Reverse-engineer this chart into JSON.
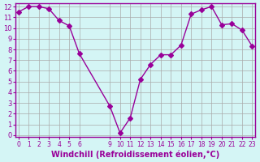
{
  "x": [
    0,
    1,
    2,
    3,
    4,
    5,
    6,
    9,
    10,
    11,
    12,
    13,
    14,
    15,
    16,
    17,
    18,
    19,
    20,
    21,
    22,
    23
  ],
  "y": [
    11.5,
    12.0,
    12.0,
    11.8,
    10.7,
    10.2,
    7.6,
    2.7,
    0.2,
    1.6,
    5.2,
    6.6,
    7.5,
    7.5,
    8.4,
    11.3,
    11.7,
    12.0,
    10.3,
    10.4,
    9.8,
    8.3
  ],
  "ylim": [
    0,
    12
  ],
  "xlim": [
    -0.3,
    23.3
  ],
  "yticks": [
    0,
    1,
    2,
    3,
    4,
    5,
    6,
    7,
    8,
    9,
    10,
    11,
    12
  ],
  "shown_xticks": [
    0,
    1,
    2,
    3,
    4,
    5,
    6,
    9,
    10,
    11,
    12,
    13,
    14,
    15,
    16,
    17,
    18,
    19,
    20,
    21,
    22,
    23
  ],
  "line_color": "#990099",
  "marker": "D",
  "marker_size": 3,
  "bg_color": "#d4f5f5",
  "grid_color": "#aaaaaa",
  "xlabel": "Windchill (Refroidissement éolien,°C)",
  "xlabel_color": "#990099",
  "tick_color": "#990099",
  "axis_label_fontsize": 7,
  "tick_fontsize": 6.0
}
